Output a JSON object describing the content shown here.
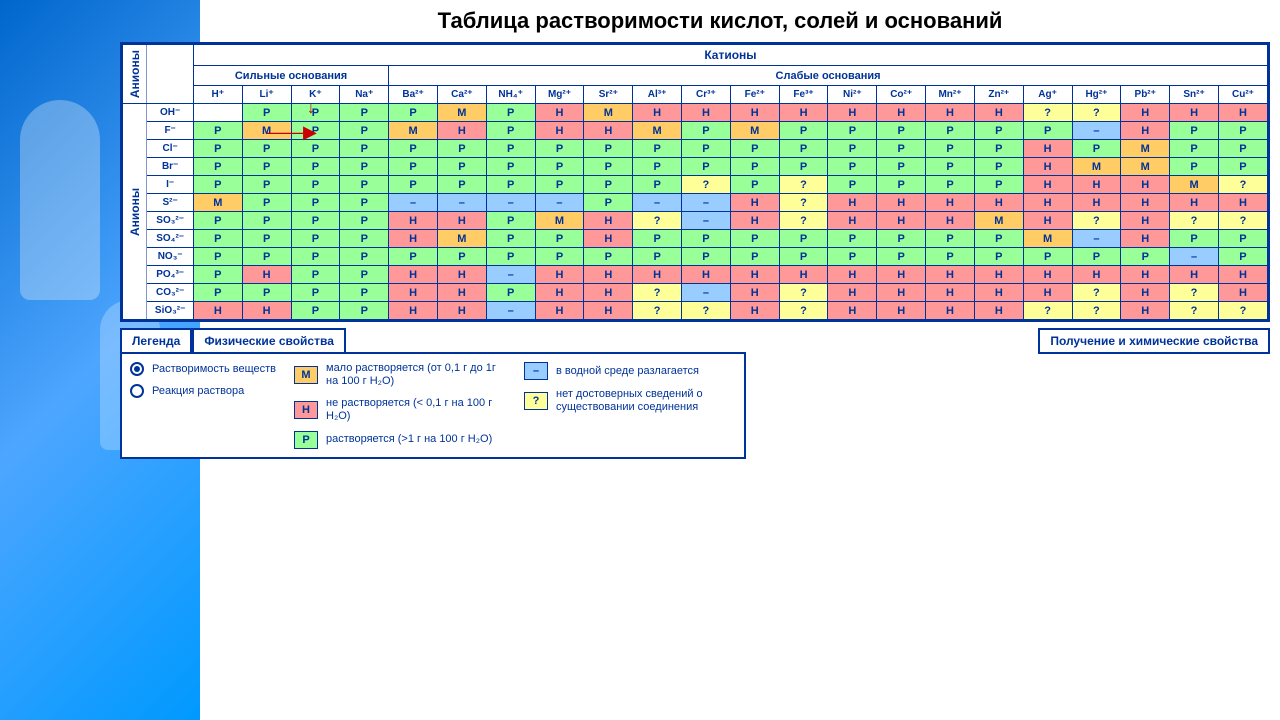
{
  "title": "Таблица растворимости кислот, солей и оснований",
  "headers": {
    "cations": "Катионы",
    "anions": "Анионы",
    "strong_bases": "Сильные основания",
    "weak_bases": "Слабые основания"
  },
  "cations": [
    "H⁺",
    "Li⁺",
    "K⁺",
    "Na⁺",
    "Ba²⁺",
    "Ca²⁺",
    "NH₄⁺",
    "Mg²⁺",
    "Sr²⁺",
    "Al³⁺",
    "Cr³⁺",
    "Fe²⁺",
    "Fe³⁺",
    "Ni²⁺",
    "Co²⁺",
    "Mn²⁺",
    "Zn²⁺",
    "Ag⁺",
    "Hg²⁺",
    "Pb²⁺",
    "Sn²⁺",
    "Cu²⁺"
  ],
  "anions": [
    "OH⁻",
    "F⁻",
    "Cl⁻",
    "Br⁻",
    "I⁻",
    "S²⁻",
    "SO₃²⁻",
    "SO₄²⁻",
    "NO₃⁻",
    "PO₄³⁻",
    "CO₃²⁻",
    "SiO₃²⁻"
  ],
  "cell_colors": {
    "P": "#99ff99",
    "H": "#ff9999",
    "M": "#ffcc66",
    "?": "#ffff99",
    "–": "#99ccff"
  },
  "grid": [
    [
      "",
      "Р",
      "Р",
      "Р",
      "Р",
      "М",
      "Р",
      "Н",
      "М",
      "Н",
      "Н",
      "Н",
      "Н",
      "Н",
      "Н",
      "Н",
      "Н",
      "?",
      "?",
      "Н",
      "Н",
      "Н"
    ],
    [
      "Р",
      "М",
      "Р",
      "Р",
      "М",
      "Н",
      "Р",
      "Н",
      "Н",
      "М",
      "Р",
      "М",
      "Р",
      "Р",
      "Р",
      "Р",
      "Р",
      "Р",
      "–",
      "Н",
      "Р",
      "Р"
    ],
    [
      "Р",
      "Р",
      "Р",
      "Р",
      "Р",
      "Р",
      "Р",
      "Р",
      "Р",
      "Р",
      "Р",
      "Р",
      "Р",
      "Р",
      "Р",
      "Р",
      "Р",
      "Н",
      "Р",
      "М",
      "Р",
      "Р"
    ],
    [
      "Р",
      "Р",
      "Р",
      "Р",
      "Р",
      "Р",
      "Р",
      "Р",
      "Р",
      "Р",
      "Р",
      "Р",
      "Р",
      "Р",
      "Р",
      "Р",
      "Р",
      "Н",
      "М",
      "М",
      "Р",
      "Р"
    ],
    [
      "Р",
      "Р",
      "Р",
      "Р",
      "Р",
      "Р",
      "Р",
      "Р",
      "Р",
      "Р",
      "?",
      "Р",
      "?",
      "Р",
      "Р",
      "Р",
      "Р",
      "Н",
      "Н",
      "Н",
      "М",
      "?"
    ],
    [
      "М",
      "Р",
      "Р",
      "Р",
      "–",
      "–",
      "–",
      "–",
      "Р",
      "–",
      "–",
      "Н",
      "?",
      "Н",
      "Н",
      "Н",
      "Н",
      "Н",
      "Н",
      "Н",
      "Н",
      "Н"
    ],
    [
      "Р",
      "Р",
      "Р",
      "Р",
      "Н",
      "Н",
      "Р",
      "М",
      "Н",
      "?",
      "–",
      "Н",
      "?",
      "Н",
      "Н",
      "Н",
      "М",
      "Н",
      "?",
      "Н",
      "?",
      "?"
    ],
    [
      "Р",
      "Р",
      "Р",
      "Р",
      "Н",
      "М",
      "Р",
      "Р",
      "Н",
      "Р",
      "Р",
      "Р",
      "Р",
      "Р",
      "Р",
      "Р",
      "Р",
      "М",
      "–",
      "Н",
      "Р",
      "Р"
    ],
    [
      "Р",
      "Р",
      "Р",
      "Р",
      "Р",
      "Р",
      "Р",
      "Р",
      "Р",
      "Р",
      "Р",
      "Р",
      "Р",
      "Р",
      "Р",
      "Р",
      "Р",
      "Р",
      "Р",
      "Р",
      "–",
      "Р"
    ],
    [
      "Р",
      "Н",
      "Р",
      "Р",
      "Н",
      "Н",
      "–",
      "Н",
      "Н",
      "Н",
      "Н",
      "Н",
      "Н",
      "Н",
      "Н",
      "Н",
      "Н",
      "Н",
      "Н",
      "Н",
      "Н",
      "Н"
    ],
    [
      "Р",
      "Р",
      "Р",
      "Р",
      "Н",
      "Н",
      "Р",
      "Н",
      "Н",
      "?",
      "–",
      "Н",
      "?",
      "Н",
      "Н",
      "Н",
      "Н",
      "Н",
      "?",
      "Н",
      "?",
      "Н"
    ],
    [
      "Н",
      "Н",
      "Р",
      "Р",
      "Н",
      "Н",
      "–",
      "Н",
      "Н",
      "?",
      "?",
      "Н",
      "?",
      "Н",
      "Н",
      "Н",
      "Н",
      "?",
      "?",
      "Н",
      "?",
      "?"
    ]
  ],
  "legend": {
    "tab1": "Легенда",
    "tab2": "Физические свойства",
    "btn_right": "Получение и химические свойства",
    "solubility": "Растворимость веществ",
    "reaction": "Реакция раствора",
    "M_label": "М",
    "M_text": "мало растворяется (от 0,1 г до 1г на 100 г H₂O)",
    "H_label": "Н",
    "H_text": "не растворяется (< 0,1 г на 100 г H₂O)",
    "P_label": "Р",
    "P_text": "растворяется (>1 г на 100 г H₂O)",
    "D_label": "–",
    "D_text": "в водной среде разлагается",
    "Q_label": "?",
    "Q_text": "нет достоверных сведений о существовании соединения"
  }
}
